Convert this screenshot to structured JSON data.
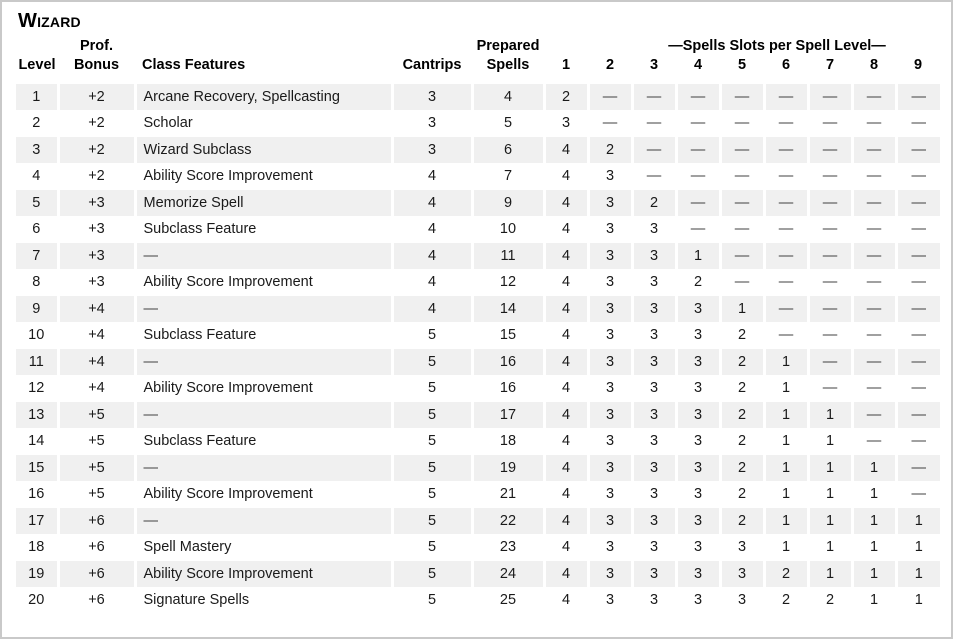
{
  "page": {
    "title": "Wizard"
  },
  "colors": {
    "row_stripe": "#f0f0f0",
    "page_border": "#c9c9c9",
    "dash_text": "#404040",
    "text": "#000000"
  },
  "table": {
    "header": {
      "level": "Level",
      "prof_line1": "Prof.",
      "prof_line2": "Bonus",
      "class_features": "Class Features",
      "cantrips": "Cantrips",
      "prepared_line1": "Prepared",
      "prepared_line2": "Spells",
      "slots_group": "—Spells Slots per Spell Level—",
      "slot_levels": [
        "1",
        "2",
        "3",
        "4",
        "5",
        "6",
        "7",
        "8",
        "9"
      ]
    },
    "rows": [
      {
        "level": "1",
        "prof": "+2",
        "features": "Arcane Recovery, Spellcasting",
        "cantrips": "3",
        "prepared": "4",
        "slots": [
          "2",
          "—",
          "—",
          "—",
          "—",
          "—",
          "—",
          "—",
          "—"
        ]
      },
      {
        "level": "2",
        "prof": "+2",
        "features": "Scholar",
        "cantrips": "3",
        "prepared": "5",
        "slots": [
          "3",
          "—",
          "—",
          "—",
          "—",
          "—",
          "—",
          "—",
          "—"
        ]
      },
      {
        "level": "3",
        "prof": "+2",
        "features": "Wizard Subclass",
        "cantrips": "3",
        "prepared": "6",
        "slots": [
          "4",
          "2",
          "—",
          "—",
          "—",
          "—",
          "—",
          "—",
          "—"
        ]
      },
      {
        "level": "4",
        "prof": "+2",
        "features": "Ability Score Improvement",
        "cantrips": "4",
        "prepared": "7",
        "slots": [
          "4",
          "3",
          "—",
          "—",
          "—",
          "—",
          "—",
          "—",
          "—"
        ]
      },
      {
        "level": "5",
        "prof": "+3",
        "features": "Memorize Spell",
        "cantrips": "4",
        "prepared": "9",
        "slots": [
          "4",
          "3",
          "2",
          "—",
          "—",
          "—",
          "—",
          "—",
          "—"
        ]
      },
      {
        "level": "6",
        "prof": "+3",
        "features": "Subclass Feature",
        "cantrips": "4",
        "prepared": "10",
        "slots": [
          "4",
          "3",
          "3",
          "—",
          "—",
          "—",
          "—",
          "—",
          "—"
        ]
      },
      {
        "level": "7",
        "prof": "+3",
        "features": "—",
        "cantrips": "4",
        "prepared": "11",
        "slots": [
          "4",
          "3",
          "3",
          "1",
          "—",
          "—",
          "—",
          "—",
          "—"
        ]
      },
      {
        "level": "8",
        "prof": "+3",
        "features": "Ability Score Improvement",
        "cantrips": "4",
        "prepared": "12",
        "slots": [
          "4",
          "3",
          "3",
          "2",
          "—",
          "—",
          "—",
          "—",
          "—"
        ]
      },
      {
        "level": "9",
        "prof": "+4",
        "features": "—",
        "cantrips": "4",
        "prepared": "14",
        "slots": [
          "4",
          "3",
          "3",
          "3",
          "1",
          "—",
          "—",
          "—",
          "—"
        ]
      },
      {
        "level": "10",
        "prof": "+4",
        "features": "Subclass Feature",
        "cantrips": "5",
        "prepared": "15",
        "slots": [
          "4",
          "3",
          "3",
          "3",
          "2",
          "—",
          "—",
          "—",
          "—"
        ]
      },
      {
        "level": "11",
        "prof": "+4",
        "features": "—",
        "cantrips": "5",
        "prepared": "16",
        "slots": [
          "4",
          "3",
          "3",
          "3",
          "2",
          "1",
          "—",
          "—",
          "—"
        ]
      },
      {
        "level": "12",
        "prof": "+4",
        "features": "Ability Score Improvement",
        "cantrips": "5",
        "prepared": "16",
        "slots": [
          "4",
          "3",
          "3",
          "3",
          "2",
          "1",
          "—",
          "—",
          "—"
        ]
      },
      {
        "level": "13",
        "prof": "+5",
        "features": "—",
        "cantrips": "5",
        "prepared": "17",
        "slots": [
          "4",
          "3",
          "3",
          "3",
          "2",
          "1",
          "1",
          "—",
          "—"
        ]
      },
      {
        "level": "14",
        "prof": "+5",
        "features": "Subclass Feature",
        "cantrips": "5",
        "prepared": "18",
        "slots": [
          "4",
          "3",
          "3",
          "3",
          "2",
          "1",
          "1",
          "—",
          "—"
        ]
      },
      {
        "level": "15",
        "prof": "+5",
        "features": "—",
        "cantrips": "5",
        "prepared": "19",
        "slots": [
          "4",
          "3",
          "3",
          "3",
          "2",
          "1",
          "1",
          "1",
          "—"
        ]
      },
      {
        "level": "16",
        "prof": "+5",
        "features": "Ability Score Improvement",
        "cantrips": "5",
        "prepared": "21",
        "slots": [
          "4",
          "3",
          "3",
          "3",
          "2",
          "1",
          "1",
          "1",
          "—"
        ]
      },
      {
        "level": "17",
        "prof": "+6",
        "features": "—",
        "cantrips": "5",
        "prepared": "22",
        "slots": [
          "4",
          "3",
          "3",
          "3",
          "2",
          "1",
          "1",
          "1",
          "1"
        ]
      },
      {
        "level": "18",
        "prof": "+6",
        "features": "Spell Mastery",
        "cantrips": "5",
        "prepared": "23",
        "slots": [
          "4",
          "3",
          "3",
          "3",
          "3",
          "1",
          "1",
          "1",
          "1"
        ]
      },
      {
        "level": "19",
        "prof": "+6",
        "features": "Ability Score Improvement",
        "cantrips": "5",
        "prepared": "24",
        "slots": [
          "4",
          "3",
          "3",
          "3",
          "3",
          "2",
          "1",
          "1",
          "1"
        ]
      },
      {
        "level": "20",
        "prof": "+6",
        "features": "Signature Spells",
        "cantrips": "5",
        "prepared": "25",
        "slots": [
          "4",
          "3",
          "3",
          "3",
          "3",
          "2",
          "2",
          "1",
          "1"
        ]
      }
    ]
  }
}
